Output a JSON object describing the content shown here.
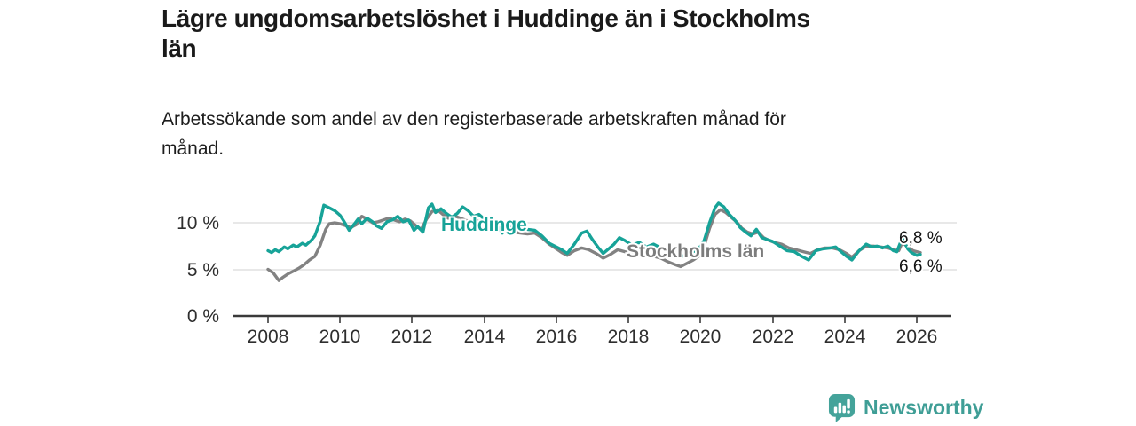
{
  "title_lines": [
    "Lägre ungdomsarbetslöshet i Huddinge än i Stockholms",
    "län"
  ],
  "subtitle_lines": [
    "Arbetssökande som andel av den registerbaserade arbetskraften månad för",
    "månad."
  ],
  "footer": {
    "brand": "Newsworthy",
    "brand_color": "#3f9e96"
  },
  "chart_data": {
    "type": "line",
    "title": "Lägre ungdomsarbetslöshet i Huddinge än i Stockholms län",
    "subtitle": "Arbetssökande som andel av den registerbaserade arbetskraften månad för månad.",
    "xlabel": "",
    "ylabel": "",
    "xlim": [
      2007,
      2027
    ],
    "ylim": [
      0,
      12.5
    ],
    "grid": "horizontal",
    "legend_position": "inline-labels",
    "x_ticks": [
      "2008",
      "2010",
      "2012",
      "2014",
      "2016",
      "2018",
      "2020",
      "2022",
      "2024",
      "2026"
    ],
    "y_ticks": [
      "10 %",
      "5 %",
      "0 %"
    ],
    "colors": {
      "huddinge": "#17a398",
      "stockholm": "#828282",
      "grid": "#dadada",
      "axis": "#3a3a3a"
    },
    "series": [
      {
        "id": "stockholms-lan",
        "name": "Stockholms län",
        "color": "#828282",
        "end_label": "6,8 %",
        "end_value": 6.8,
        "points": [
          [
            2008.0,
            5.0
          ],
          [
            2008.15,
            4.6
          ],
          [
            2008.3,
            3.8
          ],
          [
            2008.4,
            4.1
          ],
          [
            2008.55,
            4.5
          ],
          [
            2008.7,
            4.8
          ],
          [
            2008.85,
            5.1
          ],
          [
            2009.0,
            5.5
          ],
          [
            2009.15,
            6.0
          ],
          [
            2009.3,
            6.4
          ],
          [
            2009.45,
            7.6
          ],
          [
            2009.6,
            9.3
          ],
          [
            2009.7,
            9.9
          ],
          [
            2009.85,
            10.0
          ],
          [
            2010.0,
            9.9
          ],
          [
            2010.15,
            9.7
          ],
          [
            2010.3,
            9.5
          ],
          [
            2010.45,
            9.8
          ],
          [
            2010.6,
            10.7
          ],
          [
            2010.75,
            10.4
          ],
          [
            2010.9,
            10.0
          ],
          [
            2011.05,
            10.1
          ],
          [
            2011.2,
            10.3
          ],
          [
            2011.35,
            10.5
          ],
          [
            2011.5,
            10.3
          ],
          [
            2011.65,
            10.1
          ],
          [
            2011.8,
            10.4
          ],
          [
            2011.95,
            10.2
          ],
          [
            2012.1,
            9.7
          ],
          [
            2012.25,
            9.3
          ],
          [
            2012.4,
            10.4
          ],
          [
            2012.55,
            11.2
          ],
          [
            2012.7,
            11.4
          ],
          [
            2012.85,
            10.9
          ],
          [
            2013.0,
            10.5
          ],
          [
            2013.2,
            10.7
          ],
          [
            2013.4,
            10.4
          ],
          [
            2013.6,
            10.1
          ],
          [
            2013.8,
            10.2
          ],
          [
            2014.0,
            10.0
          ],
          [
            2014.2,
            9.8
          ],
          [
            2014.4,
            9.5
          ],
          [
            2014.6,
            9.2
          ],
          [
            2014.8,
            9.0
          ],
          [
            2015.0,
            8.9
          ],
          [
            2015.2,
            8.8
          ],
          [
            2015.4,
            8.9
          ],
          [
            2015.6,
            8.4
          ],
          [
            2015.8,
            7.7
          ],
          [
            2016.0,
            7.2
          ],
          [
            2016.15,
            6.8
          ],
          [
            2016.3,
            6.5
          ],
          [
            2016.5,
            7.0
          ],
          [
            2016.7,
            7.3
          ],
          [
            2016.9,
            7.1
          ],
          [
            2017.1,
            6.7
          ],
          [
            2017.3,
            6.2
          ],
          [
            2017.5,
            6.6
          ],
          [
            2017.7,
            7.1
          ],
          [
            2017.9,
            6.9
          ],
          [
            2018.1,
            6.7
          ],
          [
            2018.3,
            6.8
          ],
          [
            2018.5,
            6.5
          ],
          [
            2018.7,
            6.4
          ],
          [
            2018.9,
            6.2
          ],
          [
            2019.1,
            5.8
          ],
          [
            2019.3,
            5.5
          ],
          [
            2019.45,
            5.3
          ],
          [
            2019.6,
            5.6
          ],
          [
            2019.8,
            6.0
          ],
          [
            2019.95,
            6.4
          ],
          [
            2020.1,
            7.5
          ],
          [
            2020.25,
            9.4
          ],
          [
            2020.4,
            10.9
          ],
          [
            2020.55,
            11.4
          ],
          [
            2020.7,
            11.1
          ],
          [
            2020.85,
            10.6
          ],
          [
            2021.0,
            10.1
          ],
          [
            2021.15,
            9.4
          ],
          [
            2021.3,
            9.0
          ],
          [
            2021.45,
            8.8
          ],
          [
            2021.6,
            9.0
          ],
          [
            2021.75,
            8.4
          ],
          [
            2021.9,
            8.1
          ],
          [
            2022.05,
            7.9
          ],
          [
            2022.25,
            7.7
          ],
          [
            2022.45,
            7.3
          ],
          [
            2022.65,
            7.1
          ],
          [
            2022.85,
            6.9
          ],
          [
            2023.05,
            6.7
          ],
          [
            2023.25,
            7.1
          ],
          [
            2023.45,
            7.3
          ],
          [
            2023.65,
            7.3
          ],
          [
            2023.85,
            7.1
          ],
          [
            2024.05,
            6.7
          ],
          [
            2024.2,
            6.3
          ],
          [
            2024.4,
            7.0
          ],
          [
            2024.6,
            7.5
          ],
          [
            2024.8,
            7.5
          ],
          [
            2025.0,
            7.4
          ],
          [
            2025.2,
            7.3
          ],
          [
            2025.35,
            7.1
          ],
          [
            2025.5,
            7.0
          ],
          [
            2025.6,
            7.9
          ],
          [
            2025.75,
            7.4
          ],
          [
            2025.9,
            7.0
          ],
          [
            2026.0,
            6.9
          ],
          [
            2026.1,
            6.8
          ]
        ]
      },
      {
        "id": "huddinge",
        "name": "Huddinge",
        "color": "#17a398",
        "end_label": "6,6 %",
        "end_value": 6.6,
        "points": [
          [
            2008.0,
            7.0
          ],
          [
            2008.1,
            6.8
          ],
          [
            2008.2,
            7.1
          ],
          [
            2008.3,
            6.9
          ],
          [
            2008.45,
            7.4
          ],
          [
            2008.55,
            7.2
          ],
          [
            2008.7,
            7.6
          ],
          [
            2008.8,
            7.4
          ],
          [
            2008.95,
            7.8
          ],
          [
            2009.05,
            7.6
          ],
          [
            2009.2,
            8.1
          ],
          [
            2009.3,
            8.6
          ],
          [
            2009.45,
            10.2
          ],
          [
            2009.55,
            11.9
          ],
          [
            2009.7,
            11.6
          ],
          [
            2009.85,
            11.3
          ],
          [
            2010.0,
            10.8
          ],
          [
            2010.1,
            10.2
          ],
          [
            2010.25,
            9.2
          ],
          [
            2010.4,
            9.9
          ],
          [
            2010.5,
            10.4
          ],
          [
            2010.6,
            9.9
          ],
          [
            2010.75,
            10.5
          ],
          [
            2010.9,
            10.1
          ],
          [
            2011.0,
            9.7
          ],
          [
            2011.15,
            9.4
          ],
          [
            2011.3,
            10.1
          ],
          [
            2011.45,
            10.3
          ],
          [
            2011.6,
            10.7
          ],
          [
            2011.75,
            10.1
          ],
          [
            2011.9,
            10.3
          ],
          [
            2012.05,
            9.2
          ],
          [
            2012.15,
            9.6
          ],
          [
            2012.3,
            9.0
          ],
          [
            2012.45,
            11.6
          ],
          [
            2012.55,
            12.0
          ],
          [
            2012.65,
            11.1
          ],
          [
            2012.8,
            11.5
          ],
          [
            2012.95,
            11.0
          ],
          [
            2013.1,
            10.6
          ],
          [
            2013.25,
            11.0
          ],
          [
            2013.4,
            11.7
          ],
          [
            2013.55,
            11.3
          ],
          [
            2013.7,
            10.7
          ],
          [
            2013.85,
            10.9
          ],
          [
            2014.0,
            10.4
          ],
          [
            2014.2,
            10.0
          ],
          [
            2014.4,
            9.4
          ],
          [
            2014.5,
            8.9
          ],
          [
            2014.65,
            9.6
          ],
          [
            2014.8,
            9.4
          ],
          [
            2015.0,
            9.6
          ],
          [
            2015.2,
            9.3
          ],
          [
            2015.4,
            9.2
          ],
          [
            2015.6,
            8.6
          ],
          [
            2015.8,
            7.8
          ],
          [
            2016.0,
            7.4
          ],
          [
            2016.15,
            7.1
          ],
          [
            2016.3,
            6.7
          ],
          [
            2016.5,
            7.7
          ],
          [
            2016.7,
            8.9
          ],
          [
            2016.85,
            9.1
          ],
          [
            2017.0,
            8.2
          ],
          [
            2017.15,
            7.4
          ],
          [
            2017.3,
            6.7
          ],
          [
            2017.45,
            7.2
          ],
          [
            2017.6,
            7.7
          ],
          [
            2017.75,
            8.4
          ],
          [
            2017.9,
            8.1
          ],
          [
            2018.1,
            7.6
          ],
          [
            2018.3,
            7.9
          ],
          [
            2018.5,
            7.4
          ],
          [
            2018.7,
            7.7
          ],
          [
            2018.9,
            7.3
          ],
          [
            2019.1,
            7.0
          ],
          [
            2019.3,
            6.6
          ],
          [
            2019.45,
            6.3
          ],
          [
            2019.6,
            6.6
          ],
          [
            2019.8,
            6.9
          ],
          [
            2019.95,
            7.2
          ],
          [
            2020.1,
            8.1
          ],
          [
            2020.25,
            10.0
          ],
          [
            2020.4,
            11.6
          ],
          [
            2020.5,
            12.1
          ],
          [
            2020.65,
            11.7
          ],
          [
            2020.8,
            10.9
          ],
          [
            2020.95,
            10.3
          ],
          [
            2021.1,
            9.5
          ],
          [
            2021.25,
            9.0
          ],
          [
            2021.4,
            8.6
          ],
          [
            2021.55,
            9.3
          ],
          [
            2021.7,
            8.4
          ],
          [
            2021.85,
            8.2
          ],
          [
            2022.0,
            8.0
          ],
          [
            2022.2,
            7.5
          ],
          [
            2022.4,
            7.0
          ],
          [
            2022.6,
            6.9
          ],
          [
            2022.8,
            6.4
          ],
          [
            2023.0,
            6.0
          ],
          [
            2023.2,
            7.0
          ],
          [
            2023.4,
            7.2
          ],
          [
            2023.6,
            7.3
          ],
          [
            2023.75,
            7.4
          ],
          [
            2023.9,
            6.9
          ],
          [
            2024.05,
            6.4
          ],
          [
            2024.2,
            6.0
          ],
          [
            2024.4,
            7.0
          ],
          [
            2024.6,
            7.7
          ],
          [
            2024.75,
            7.4
          ],
          [
            2024.9,
            7.5
          ],
          [
            2025.05,
            7.3
          ],
          [
            2025.2,
            7.5
          ],
          [
            2025.35,
            7.0
          ],
          [
            2025.45,
            6.9
          ],
          [
            2025.6,
            8.4
          ],
          [
            2025.75,
            7.2
          ],
          [
            2025.85,
            6.8
          ],
          [
            2026.0,
            6.5
          ],
          [
            2026.1,
            6.6
          ]
        ]
      }
    ]
  }
}
